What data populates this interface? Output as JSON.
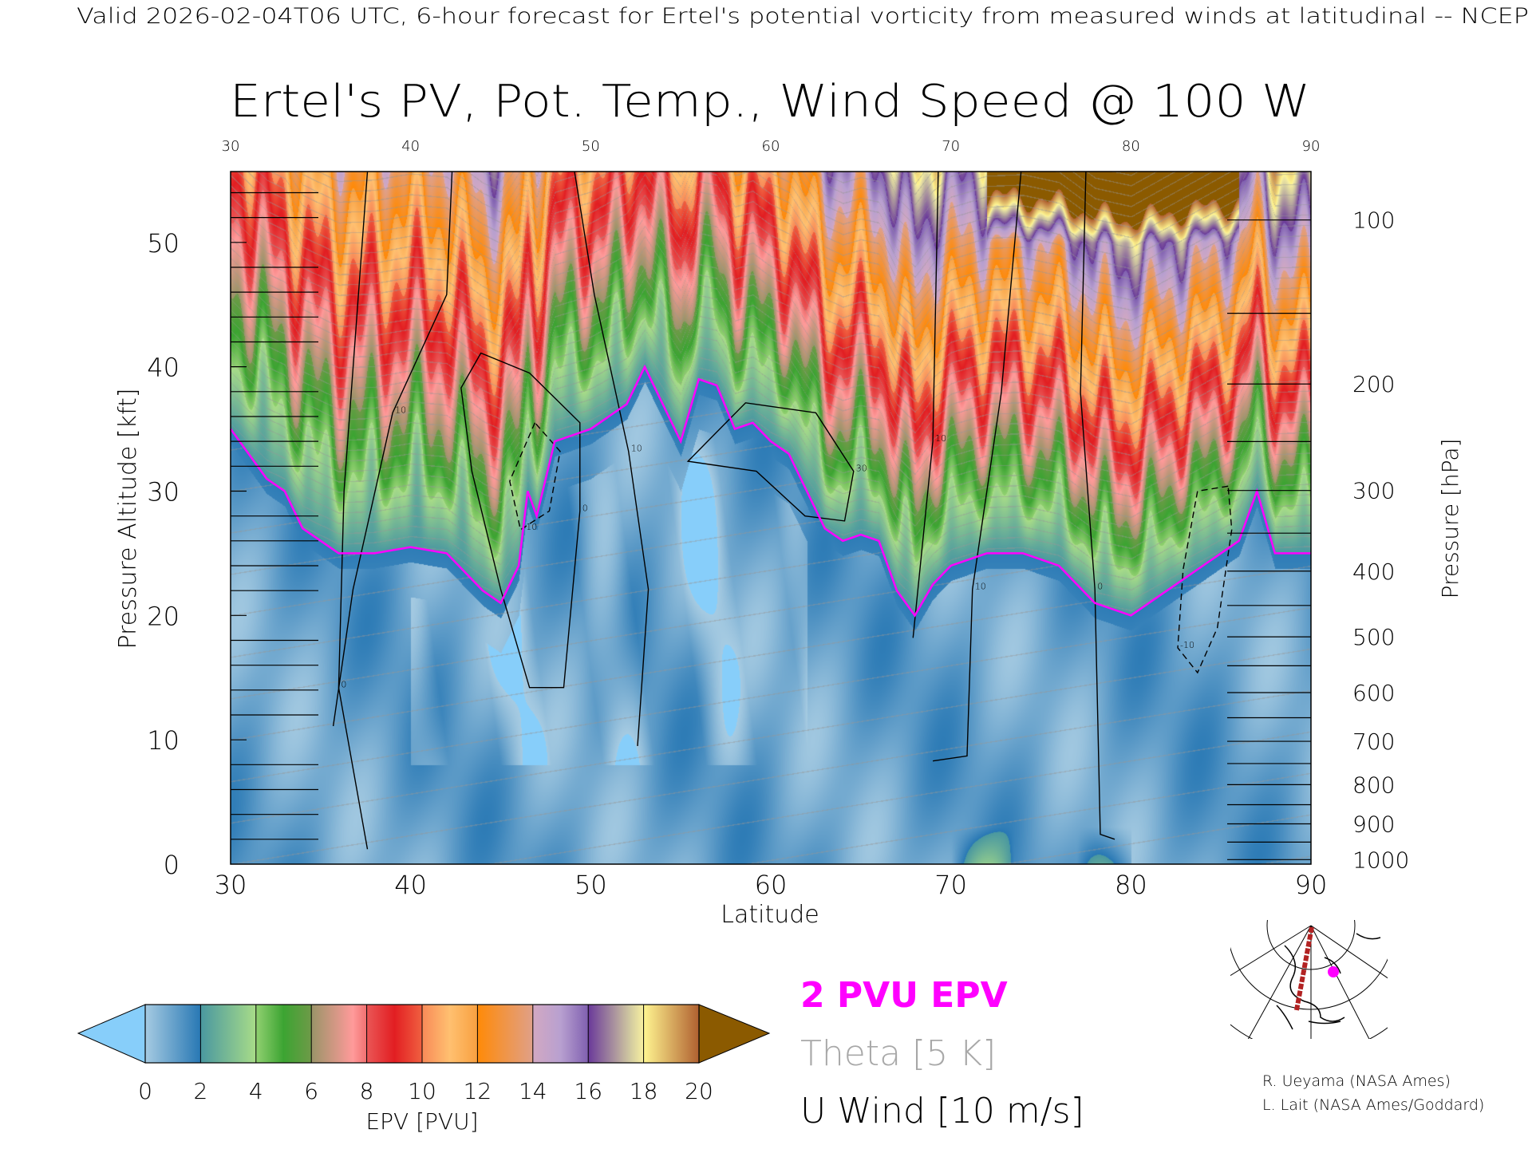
{
  "header": {
    "top_line": "Valid 2026-02-04T06 UTC, 6-hour forecast for Ertel's potential vorticity from measured winds at latitudinal -- NCEP",
    "title": "Ertel's PV, Pot. Temp., Wind Speed @ 100 W"
  },
  "legend": {
    "epv_line": "2 PVU EPV",
    "theta": "Theta [5 K]",
    "wind": "U Wind [10 m/s]",
    "epv_color": "#ff00ff",
    "theta_color": "#a8a8a8",
    "wind_color": "#000000"
  },
  "credits": {
    "line1": "R. Ueyama (NASA Ames)",
    "line2": "L. Lait (NASA Ames/Goddard)"
  },
  "chart_data": {
    "type": "heatmap",
    "title": "Ertel's PV, Pot. Temp., Wind Speed @ 100 W",
    "xlabel": "Latitude",
    "ylabel": "Pressure Altitude [kft]",
    "y2label": "Pressure [hPa]",
    "xlim": [
      30,
      90
    ],
    "ylim": [
      0,
      55.7
    ],
    "x_ticks": [
      "30",
      "40",
      "50",
      "60",
      "70",
      "80",
      "90"
    ],
    "top_x_ticks": [
      "30",
      "40",
      "50",
      "60",
      "70",
      "80",
      "90"
    ],
    "y_ticks": [
      "0",
      "10",
      "20",
      "30",
      "40",
      "50"
    ],
    "pressure_ticks": [
      "100",
      "200",
      "300",
      "400",
      "500",
      "600",
      "700",
      "800",
      "900",
      "1000"
    ],
    "colorbar": {
      "label": "EPV [PVU]",
      "ticks": [
        "0",
        "2",
        "4",
        "6",
        "8",
        "10",
        "12",
        "14",
        "16",
        "18",
        "20"
      ],
      "range": [
        0,
        20
      ],
      "under_color": "#87cefa",
      "over_color": "#8b5a00",
      "stops": [
        [
          0,
          "#a6cbe2"
        ],
        [
          2,
          "#2878b4"
        ],
        [
          2.01,
          "#4a98a0"
        ],
        [
          4,
          "#a8dc88"
        ],
        [
          4.01,
          "#90d070"
        ],
        [
          5,
          "#3ca432"
        ],
        [
          6,
          "#6e9a48"
        ],
        [
          6.01,
          "#9a9468"
        ],
        [
          7.5,
          "#ff9a9a"
        ],
        [
          8,
          "#f07070"
        ],
        [
          8.01,
          "#ea5656"
        ],
        [
          9,
          "#e21e22"
        ],
        [
          10,
          "#f06040"
        ],
        [
          10.01,
          "#f88a58"
        ],
        [
          11,
          "#ffc070"
        ],
        [
          12,
          "#f8a040"
        ],
        [
          12.01,
          "#ff8a08"
        ],
        [
          14,
          "#e0a088"
        ],
        [
          14.01,
          "#d2a8c2"
        ],
        [
          15,
          "#b8a0d0"
        ],
        [
          16,
          "#8060b0"
        ],
        [
          16.01,
          "#6a3a9a"
        ],
        [
          17.5,
          "#d0c8a0"
        ],
        [
          18,
          "#f8f0a0"
        ],
        [
          18.01,
          "#fff590"
        ],
        [
          20,
          "#b06030"
        ]
      ]
    },
    "tropopause_2pvu": [
      [
        30,
        35
      ],
      [
        31,
        33
      ],
      [
        32,
        31
      ],
      [
        33,
        30
      ],
      [
        34,
        27
      ],
      [
        35,
        26
      ],
      [
        36,
        25
      ],
      [
        38,
        25
      ],
      [
        40,
        25.5
      ],
      [
        42,
        25
      ],
      [
        43,
        23.5
      ],
      [
        44,
        22
      ],
      [
        45,
        21
      ],
      [
        46,
        24
      ],
      [
        46.5,
        30
      ],
      [
        47,
        28
      ],
      [
        48,
        34
      ],
      [
        49,
        34.5
      ],
      [
        50,
        35
      ],
      [
        51,
        36
      ],
      [
        52,
        37
      ],
      [
        53,
        40
      ],
      [
        54,
        37
      ],
      [
        55,
        34
      ],
      [
        56,
        39
      ],
      [
        57,
        38.5
      ],
      [
        58,
        35
      ],
      [
        59,
        35.5
      ],
      [
        60,
        34
      ],
      [
        61,
        33
      ],
      [
        62,
        30
      ],
      [
        63,
        27
      ],
      [
        64,
        26
      ],
      [
        65,
        26.5
      ],
      [
        66,
        26
      ],
      [
        67,
        22
      ],
      [
        68,
        20
      ],
      [
        69,
        22.5
      ],
      [
        70,
        24
      ],
      [
        72,
        25
      ],
      [
        74,
        25
      ],
      [
        76,
        24
      ],
      [
        78,
        21
      ],
      [
        80,
        20
      ],
      [
        82,
        22
      ],
      [
        84,
        24
      ],
      [
        86,
        26
      ],
      [
        87,
        30
      ],
      [
        88,
        25
      ],
      [
        90,
        25
      ]
    ],
    "wind_contours": [
      {
        "level": "0",
        "dashed": false,
        "points": [
          [
            37.6,
            55.7
          ],
          [
            36.3,
            30
          ],
          [
            36,
            14.2
          ],
          [
            37.6,
            1.2
          ]
        ]
      },
      {
        "level": "10",
        "dashed": false,
        "points": [
          [
            42.3,
            55.7
          ],
          [
            42,
            45.8
          ],
          [
            39,
            36.3
          ],
          [
            36.8,
            22.1
          ],
          [
            35.7,
            11.1
          ]
        ]
      },
      {
        "level": "0",
        "dashed": false,
        "closed": true,
        "points": [
          [
            42.8,
            38.3
          ],
          [
            43.9,
            41.1
          ],
          [
            46.6,
            39.5
          ],
          [
            49.4,
            35.5
          ],
          [
            49.4,
            28.4
          ],
          [
            48.5,
            14.2
          ],
          [
            46.6,
            14.2
          ],
          [
            45,
            22.1
          ],
          [
            43.4,
            31.6
          ]
        ]
      },
      {
        "level": "10",
        "dashed": false,
        "points": [
          [
            49.1,
            55.7
          ],
          [
            50.2,
            45.8
          ],
          [
            52.1,
            33.2
          ],
          [
            53.2,
            22.1
          ],
          [
            52.6,
            9.5
          ]
        ]
      },
      {
        "level": "10",
        "dashed": false,
        "points": [
          [
            69.3,
            55.7
          ],
          [
            69,
            34
          ],
          [
            67.9,
            18.2
          ]
        ]
      },
      {
        "level": "10",
        "dashed": false,
        "points": [
          [
            73.9,
            55.7
          ],
          [
            72.8,
            37.9
          ],
          [
            71.2,
            22.1
          ],
          [
            70.9,
            8.7
          ],
          [
            69,
            8.3
          ]
        ]
      },
      {
        "level": "0",
        "dashed": false,
        "points": [
          [
            77.5,
            55.7
          ],
          [
            77.2,
            37.9
          ],
          [
            78,
            22.1
          ],
          [
            78.3,
            2.4
          ],
          [
            79.1,
            2
          ]
        ]
      },
      {
        "level": "30",
        "dashed": false,
        "closed": true,
        "points": [
          [
            55.4,
            32.4
          ],
          [
            58.6,
            37.1
          ],
          [
            62.5,
            36.3
          ],
          [
            64.6,
            31.6
          ],
          [
            64.1,
            27.6
          ],
          [
            61.9,
            28
          ],
          [
            59.2,
            31.6
          ]
        ]
      },
      {
        "level": "-10",
        "dashed": true,
        "closed": true,
        "points": [
          [
            85.4,
            30.4
          ],
          [
            83.7,
            30
          ],
          [
            82.9,
            23.7
          ],
          [
            82.6,
            17.4
          ],
          [
            83.7,
            15.4
          ],
          [
            84.8,
            19
          ],
          [
            85.6,
            26.9
          ]
        ]
      },
      {
        "level": "-10",
        "dashed": true,
        "closed": true,
        "points": [
          [
            46.9,
            35.5
          ],
          [
            45.5,
            30.8
          ],
          [
            46.1,
            26.9
          ],
          [
            47.7,
            28.4
          ],
          [
            48.3,
            33.2
          ]
        ]
      }
    ]
  },
  "locator_map": {
    "section_color": "#b22222",
    "marker_color": "#ff00ff"
  }
}
